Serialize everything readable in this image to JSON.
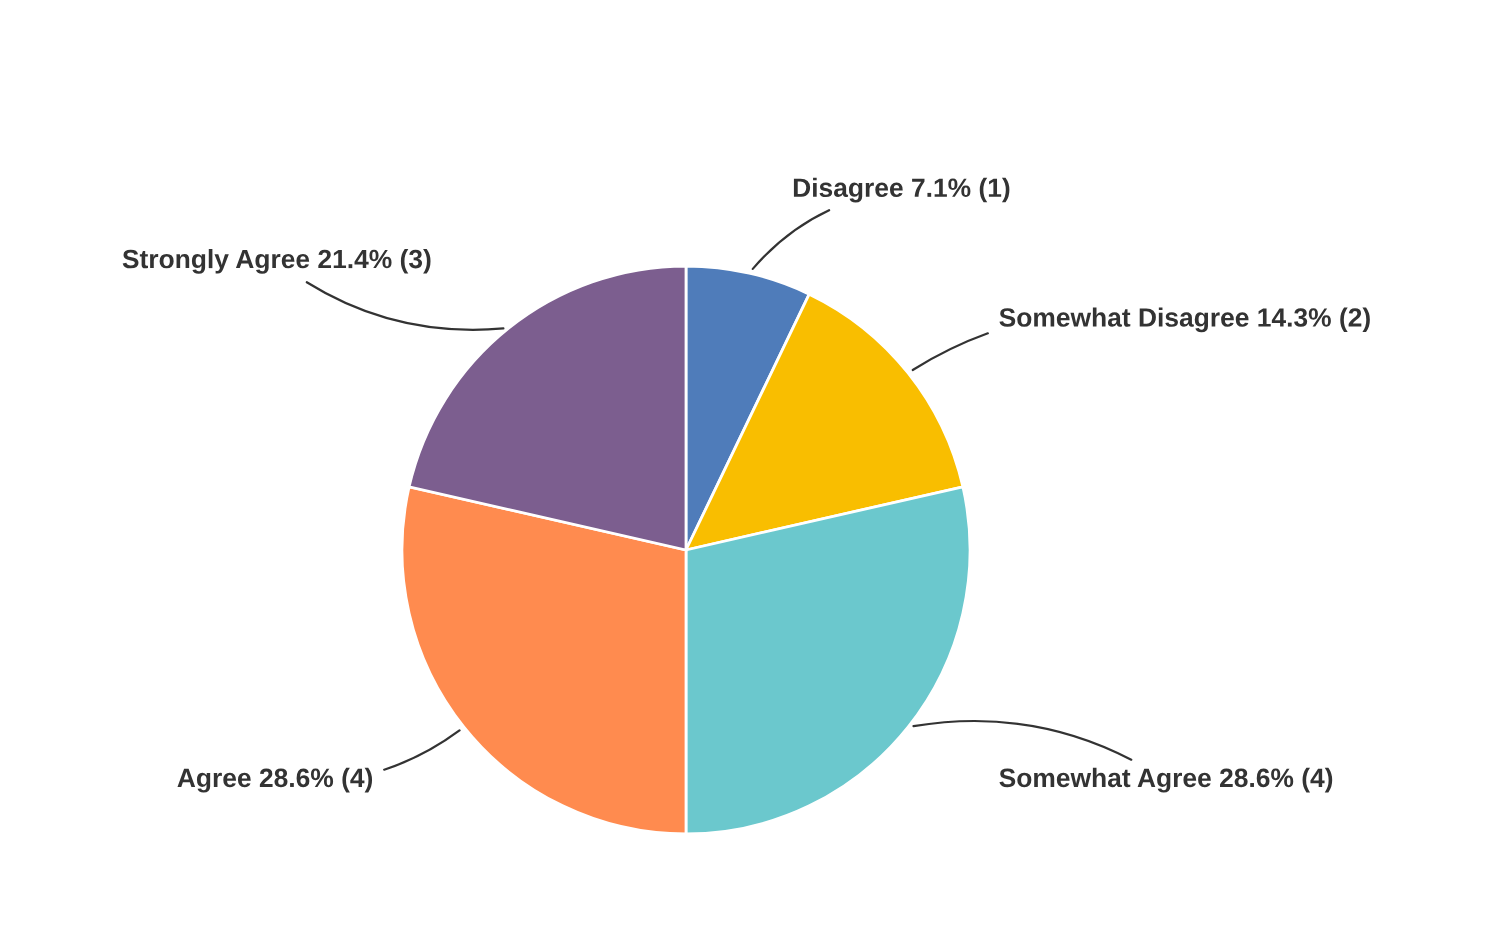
{
  "chart_data": {
    "type": "pie",
    "categories": [
      "Disagree",
      "Somewhat Disagree",
      "Somewhat Agree",
      "Agree",
      "Strongly Agree"
    ],
    "values": [
      1,
      2,
      4,
      4,
      3
    ],
    "value_labels": [
      "7.1% (1)",
      "14.3% (2)",
      "28.6% (4)",
      "28.6% (4)",
      "21.4% (3)"
    ],
    "colors": [
      "#4f7cba",
      "#f9be00",
      "#6bc8cd",
      "#ff8b4f",
      "#7c5e8f"
    ]
  }
}
